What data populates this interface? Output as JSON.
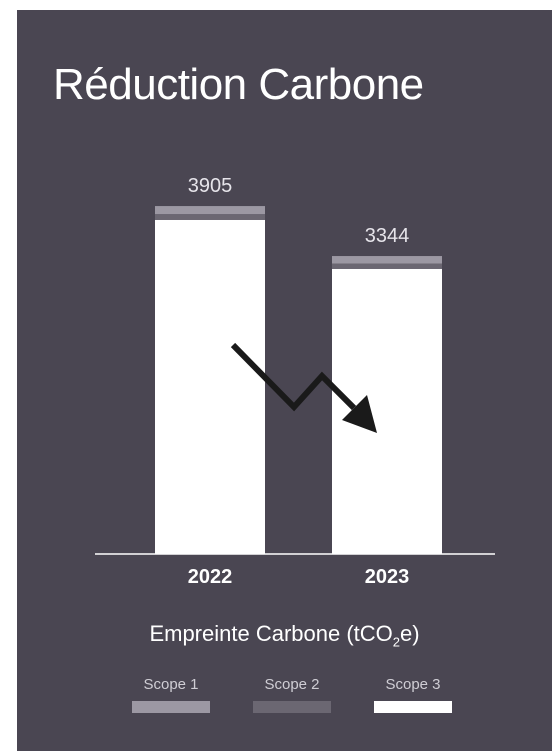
{
  "title": "Réduction Carbone",
  "colors": {
    "background": "#4a4652",
    "scope1": "#9c98a3",
    "scope2": "#6b6772",
    "scope3": "#ffffff",
    "arrow": "#1a1a1a"
  },
  "legend": {
    "title_main": "Empreinte Carbone  (tCO",
    "title_sub": "2",
    "title_end": "e)",
    "items": [
      "Scope 1",
      "Scope 2",
      "Scope 3"
    ]
  },
  "chart_data": {
    "type": "bar",
    "stacked": true,
    "categories": [
      "2022",
      "2023"
    ],
    "totals": [
      "3905",
      "3344"
    ],
    "total_values": [
      3905,
      3344
    ],
    "series": [
      {
        "name": "Scope 3",
        "values": [
          3750,
          3200
        ]
      },
      {
        "name": "Scope 2",
        "values": [
          65,
          60
        ]
      },
      {
        "name": "Scope 1",
        "values": [
          90,
          84
        ]
      }
    ],
    "ylim": [
      0,
      4000
    ],
    "grid": false,
    "legend_position": "bottom",
    "annotation": "downward-trend-arrow"
  }
}
